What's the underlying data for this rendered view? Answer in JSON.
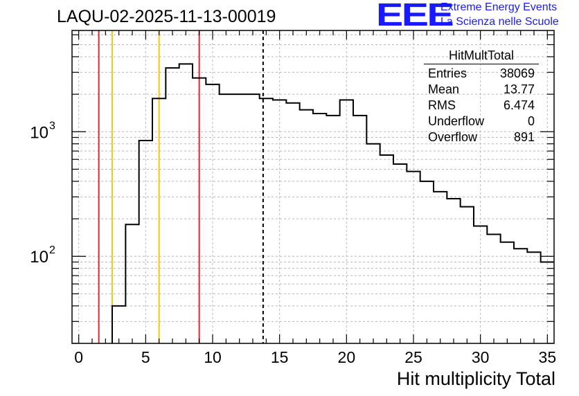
{
  "chart_data": {
    "type": "histogram",
    "title": "LAQU-02-2025-11-13-00019",
    "xlabel": "Hit multiplicity Total",
    "ylabel": "",
    "xlim": [
      -0.5,
      35.5
    ],
    "ylim": [
      20,
      6500
    ],
    "yscale": "log",
    "grid": true,
    "x_ticks": [
      0,
      5,
      10,
      15,
      20,
      25,
      30,
      35
    ],
    "x_tick_labels": [
      "0",
      "5",
      "10",
      "15",
      "20",
      "25",
      "30",
      "35"
    ],
    "y_ticks": [
      100,
      1000
    ],
    "y_tick_labels": [
      {
        "base": "10",
        "exp": "2"
      },
      {
        "base": "10",
        "exp": "3"
      }
    ],
    "bin_edges": [
      2.5,
      3.5,
      4.5,
      5.5,
      6.5,
      7.5,
      8.5,
      9.5,
      10.5,
      11.5,
      12.5,
      13.5,
      14.5,
      15.5,
      16.5,
      17.5,
      18.5,
      19.5,
      20.5,
      21.5,
      22.5,
      23.5,
      24.5,
      25.5,
      26.5,
      27.5,
      28.5,
      29.5,
      30.5,
      31.5,
      32.5,
      33.5,
      34.5,
      35.5
    ],
    "counts": [
      40,
      180,
      850,
      1850,
      3250,
      3500,
      2700,
      2400,
      2000,
      2000,
      2000,
      1850,
      1800,
      1700,
      1500,
      1400,
      1350,
      1800,
      1350,
      800,
      650,
      550,
      480,
      400,
      330,
      290,
      250,
      175,
      150,
      130,
      115,
      108,
      90
    ],
    "vlines": [
      {
        "x": 1.5,
        "color": "#e8242e",
        "style": "solid"
      },
      {
        "x": 2.5,
        "color": "#f5c518",
        "style": "solid"
      },
      {
        "x": 6.0,
        "color": "#f5c518",
        "style": "solid"
      },
      {
        "x": 9.0,
        "color": "#e8242e",
        "style": "solid"
      },
      {
        "x": 13.77,
        "color": "#000000",
        "style": "dashed"
      }
    ],
    "stats": {
      "name": "HitMultTotal",
      "rows": [
        {
          "label": "Entries",
          "value": "38069"
        },
        {
          "label": "Mean",
          "value": "13.77"
        },
        {
          "label": "RMS",
          "value": "6.474"
        },
        {
          "label": "Underflow",
          "value": "0"
        },
        {
          "label": "Overflow",
          "value": "891"
        }
      ]
    }
  },
  "logo": {
    "mark": "EEE",
    "line1": "Extreme Energy Events",
    "line2": "La Scienza nelle Scuole"
  }
}
